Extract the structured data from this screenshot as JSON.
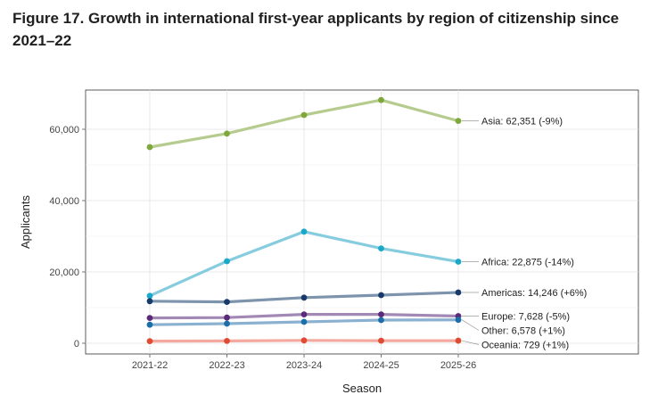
{
  "chart_data": {
    "type": "line",
    "title": "Figure 17. Growth in international first-year applicants by region of citizenship since 2021–22",
    "xlabel": "Season",
    "ylabel": "Applicants",
    "categories": [
      "2021-22",
      "2022-23",
      "2023-24",
      "2024-25",
      "2025-26"
    ],
    "ylim": [
      -3000,
      71000
    ],
    "yticks": [
      0,
      20000,
      40000,
      60000
    ],
    "ytick_labels": [
      "0",
      "20,000",
      "40,000",
      "60,000"
    ],
    "grid": true,
    "legend": "end-of-line labels on the right",
    "series": [
      {
        "name": "Asia",
        "values": [
          55000,
          58800,
          64000,
          68200,
          62351
        ],
        "line_color": "#b5cc8e",
        "point_color": "#7fa83a",
        "label": "Asia: 62,351 (-9%)"
      },
      {
        "name": "Africa",
        "values": [
          13300,
          23000,
          31300,
          26600,
          22875
        ],
        "line_color": "#86ccdf",
        "point_color": "#1aa8c9",
        "label": "Africa: 22,875 (-14%)"
      },
      {
        "name": "Americas",
        "values": [
          11800,
          11600,
          12800,
          13500,
          14246
        ],
        "line_color": "#7d94ac",
        "point_color": "#183a6b",
        "label": "Americas: 14,246 (+6%)"
      },
      {
        "name": "Europe",
        "values": [
          7100,
          7200,
          8100,
          8100,
          7628
        ],
        "line_color": "#a289b5",
        "point_color": "#5b2a78",
        "label": "Europe: 7,628 (-5%)"
      },
      {
        "name": "Other",
        "values": [
          5200,
          5500,
          6000,
          6500,
          6578
        ],
        "line_color": "#8bb1d1",
        "point_color": "#1a6fa8",
        "label": "Other: 6,578 (+1%)"
      },
      {
        "name": "Oceania",
        "values": [
          600,
          650,
          800,
          720,
          729
        ],
        "line_color": "#f4a89e",
        "point_color": "#e04a33",
        "label": "Oceania: 729 (+1%)"
      }
    ]
  }
}
